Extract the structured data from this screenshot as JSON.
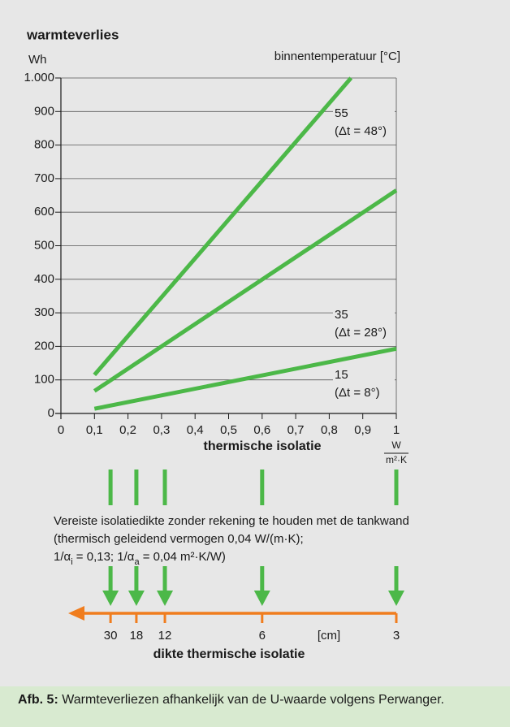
{
  "chart_data": {
    "type": "line",
    "title": "warmteverlies",
    "ylabel": "Wh",
    "legend_title": "binnentemperatuur [°C]",
    "xlabel": "thermische isolatie",
    "xunit_num": "W",
    "xunit_den": "m²·K",
    "xlim": [
      0,
      1
    ],
    "ylim": [
      0,
      1000
    ],
    "xticks": [
      0,
      {
        "value": 0.1,
        "label": "0,1"
      },
      {
        "value": 0.2,
        "label": "0,2"
      },
      {
        "value": 0.3,
        "label": "0,3"
      },
      {
        "value": 0.4,
        "label": "0,4"
      },
      {
        "value": 0.5,
        "label": "0,5"
      },
      {
        "value": 0.6,
        "label": "0,6"
      },
      {
        "value": 0.7,
        "label": "0,7"
      },
      {
        "value": 0.8,
        "label": "0,8"
      },
      {
        "value": 0.9,
        "label": "0,9"
      },
      1
    ],
    "yticks": [
      0,
      100,
      200,
      300,
      400,
      500,
      600,
      700,
      800,
      900,
      {
        "value": 1000,
        "label": "1.000"
      }
    ],
    "grid": true,
    "series": [
      {
        "name": "55",
        "note": "(Δt = 48°)",
        "color": "#4cb848",
        "x": [
          0.1,
          0.865
        ],
        "values": [
          115,
          1000
        ]
      },
      {
        "name": "35",
        "note": "(Δt = 28°)",
        "color": "#4cb848",
        "x": [
          0.1,
          1
        ],
        "values": [
          67,
          665
        ]
      },
      {
        "name": "15",
        "note": "(Δt = 8°)",
        "color": "#4cb848",
        "x": [
          0.1,
          1
        ],
        "values": [
          14,
          193
        ]
      }
    ],
    "note_lines": [
      "Vereiste isolatiedikte zonder rekening te houden met de tankwand",
      "(thermisch geleidend vermogen 0,04 W/(m·K);"
    ],
    "note_last": [
      "1/α",
      "i",
      " = 0,13; 1/α",
      "a",
      " = 0,04 m²·K/W)"
    ],
    "thickness": {
      "title": "dikte thermische isolatie",
      "unit": "[cm]",
      "color": "#f07d1e",
      "arrow_color": "#4cb848",
      "u_values": [
        0.148,
        0.225,
        0.31,
        0.6,
        1
      ],
      "cm": [
        30,
        18,
        12,
        6,
        3
      ]
    }
  },
  "caption": {
    "label": "Afb. 5:",
    "text": " Warmteverliezen afhankelijk van de U-waarde volgens Perwanger."
  }
}
